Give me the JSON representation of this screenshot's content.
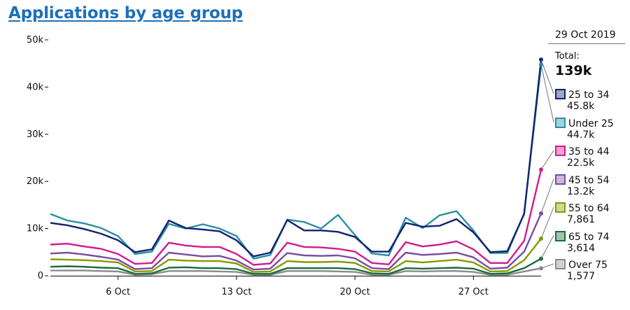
{
  "chart_data": {
    "type": "line",
    "title": "Applications by age group",
    "ylim": [
      0,
      50000
    ],
    "yticks": [
      0,
      10000,
      20000,
      30000,
      40000,
      50000
    ],
    "ytick_labels": [
      "0",
      "10k",
      "20k",
      "30k",
      "40k",
      "50k"
    ],
    "x_days": 30,
    "xticks": [
      {
        "day": 4,
        "label": "6 Oct"
      },
      {
        "day": 11,
        "label": "13 Oct"
      },
      {
        "day": 18,
        "label": "20 Oct"
      },
      {
        "day": 25,
        "label": "27 Oct"
      }
    ],
    "series": [
      {
        "name": "25 to 34",
        "color": "#12236e",
        "legend_value": "45.8k",
        "values": [
          11200,
          10700,
          9900,
          8900,
          7500,
          5000,
          5600,
          11700,
          10100,
          9800,
          9400,
          7500,
          4100,
          4900,
          11800,
          9600,
          9600,
          9300,
          8200,
          5100,
          5100,
          11200,
          10400,
          10600,
          12000,
          9200,
          5000,
          5200,
          13100,
          45800
        ]
      },
      {
        "name": "Under 25",
        "color": "#2a8fa3",
        "legend_value": "44.7k",
        "values": [
          13100,
          11700,
          11100,
          10100,
          8400,
          4600,
          5100,
          11000,
          10000,
          10900,
          10000,
          8400,
          3600,
          4400,
          11900,
          11400,
          10000,
          12900,
          8600,
          4700,
          4300,
          12300,
          10100,
          12800,
          13700,
          9600,
          4800,
          4800,
          13200,
          44700
        ]
      },
      {
        "name": "35 to 44",
        "color": "#d21b8c",
        "legend_value": "22.5k",
        "values": [
          6600,
          6800,
          6200,
          5700,
          4600,
          2500,
          2700,
          7000,
          6400,
          6100,
          6100,
          4600,
          2300,
          2600,
          7000,
          6100,
          6000,
          5700,
          5100,
          2700,
          2400,
          7100,
          6200,
          6600,
          7300,
          5600,
          2700,
          2700,
          7400,
          22500
        ]
      },
      {
        "name": "45 to 54",
        "color": "#7a4ba3",
        "legend_value": "13.2k",
        "values": [
          4700,
          4900,
          4500,
          4000,
          3400,
          1400,
          1600,
          4900,
          4500,
          4100,
          4200,
          3200,
          1300,
          1500,
          4800,
          4300,
          4200,
          4300,
          3700,
          1600,
          1400,
          4900,
          4400,
          4600,
          4900,
          3900,
          1500,
          1700,
          5100,
          13200
        ]
      },
      {
        "name": "55 to 64",
        "color": "#859a00",
        "legend_value": "7,861",
        "values": [
          3500,
          3400,
          3300,
          3100,
          2800,
          900,
          1000,
          3400,
          3200,
          3100,
          3100,
          2600,
          800,
          900,
          3100,
          2900,
          2900,
          3000,
          2700,
          1000,
          900,
          3100,
          2800,
          3100,
          3400,
          2800,
          900,
          1000,
          3300,
          7861
        ]
      },
      {
        "name": "65 to 74",
        "color": "#1a6b3f",
        "legend_value": "3,614",
        "values": [
          1900,
          2000,
          1900,
          1700,
          1600,
          400,
          500,
          1700,
          1800,
          1600,
          1600,
          1400,
          400,
          400,
          1600,
          1600,
          1600,
          1600,
          1400,
          500,
          400,
          1600,
          1500,
          1600,
          1700,
          1500,
          400,
          500,
          1600,
          3614
        ]
      },
      {
        "name": "Over 75",
        "color": "#8b8b8b",
        "legend_value": "1,577",
        "values": [
          1100,
          1100,
          1100,
          1000,
          900,
          200,
          300,
          1000,
          1000,
          1000,
          900,
          800,
          200,
          200,
          1000,
          1000,
          1000,
          900,
          800,
          200,
          200,
          1000,
          900,
          1000,
          1000,
          800,
          200,
          200,
          900,
          1577
        ]
      }
    ]
  },
  "legend": {
    "date": "29 Oct 2019",
    "total_label": "Total:",
    "total_value": "139k"
  }
}
